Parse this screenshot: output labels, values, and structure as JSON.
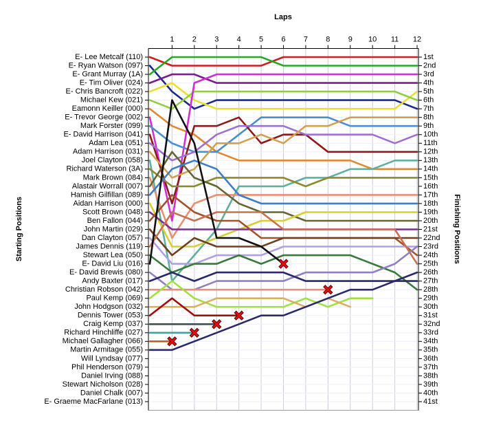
{
  "chart_data": {
    "type": "line",
    "title": "Laps",
    "ylabel": "Starting Positions",
    "y2label": "Finishing Positions",
    "x": [
      0,
      1,
      2,
      3,
      4,
      5,
      6,
      7,
      8,
      9,
      10,
      11,
      12
    ],
    "xlim": [
      0,
      12
    ],
    "xticks": [
      1,
      2,
      3,
      4,
      5,
      6,
      7,
      8,
      9,
      10,
      11,
      12
    ],
    "ylim": [
      42,
      0
    ],
    "yticks": [
      {
        "value": 1,
        "label": "E- Lee Metcalf (110)"
      },
      {
        "value": 2,
        "label": "E- Ryan Watson (097)"
      },
      {
        "value": 3,
        "label": "E- Grant Murray (1A)"
      },
      {
        "value": 4,
        "label": "E- Tim Oliver (024)"
      },
      {
        "value": 5,
        "label": "E- Chris Bancroft (022)"
      },
      {
        "value": 6,
        "label": "Michael Kew (021)"
      },
      {
        "value": 7,
        "label": "Eamonn Keiller (000)"
      },
      {
        "value": 8,
        "label": "E- Trevor George (002)"
      },
      {
        "value": 9,
        "label": "Mark Forster (099)"
      },
      {
        "value": 10,
        "label": "E- David Harrison (041)"
      },
      {
        "value": 11,
        "label": "Adam Lea (051)"
      },
      {
        "value": 12,
        "label": "Adam Harrison (031)"
      },
      {
        "value": 13,
        "label": "Joel Clayton (058)"
      },
      {
        "value": 14,
        "label": "Richard Waterson (3A)"
      },
      {
        "value": 15,
        "label": "Mark Brown (084)"
      },
      {
        "value": 16,
        "label": "Alastair Worrall (007)"
      },
      {
        "value": 17,
        "label": "Hamish Gilfillan (089)"
      },
      {
        "value": 18,
        "label": "Aidan Harrison (000)"
      },
      {
        "value": 19,
        "label": "Scott Brown (048)"
      },
      {
        "value": 20,
        "label": "Ben Fallon (044)"
      },
      {
        "value": 21,
        "label": "John Martin (029)"
      },
      {
        "value": 22,
        "label": "Dan Clayton (057)"
      },
      {
        "value": 23,
        "label": "James Dennis (119)"
      },
      {
        "value": 24,
        "label": "Stewart Lea (050)"
      },
      {
        "value": 25,
        "label": "E- David Liu (016)"
      },
      {
        "value": 26,
        "label": "E- David Brewis (080)"
      },
      {
        "value": 27,
        "label": "Andy Baxter (017)"
      },
      {
        "value": 28,
        "label": "Christian Robson (042)"
      },
      {
        "value": 29,
        "label": "Paul Kemp (069)"
      },
      {
        "value": 30,
        "label": "John Hodgson (032)"
      },
      {
        "value": 31,
        "label": "Dennis Tower (053)"
      },
      {
        "value": 32,
        "label": "Craig Kemp (037)"
      },
      {
        "value": 33,
        "label": "Richard Hinchliffe (027)"
      },
      {
        "value": 34,
        "label": "Michael Gallagher (066)"
      },
      {
        "value": 35,
        "label": "Martin Armitage (055)"
      },
      {
        "value": 36,
        "label": "Will Lyndsay (077)"
      },
      {
        "value": 37,
        "label": "Phil Henderson (079)"
      },
      {
        "value": 38,
        "label": "Daniel Irving (088)"
      },
      {
        "value": 39,
        "label": "Stewart Nicholson (028)"
      },
      {
        "value": 40,
        "label": "Daniel Chalk (007)"
      },
      {
        "value": 41,
        "label": "E- Graeme MacFarlane (013)"
      }
    ],
    "y2lim": [
      42,
      0
    ],
    "y2ticks": [
      {
        "value": 1,
        "label": "1st"
      },
      {
        "value": 2,
        "label": "2nd"
      },
      {
        "value": 3,
        "label": "3rd"
      },
      {
        "value": 4,
        "label": "4th"
      },
      {
        "value": 5,
        "label": "5th"
      },
      {
        "value": 6,
        "label": "6th"
      },
      {
        "value": 7,
        "label": "7th"
      },
      {
        "value": 8,
        "label": "8th"
      },
      {
        "value": 9,
        "label": "9th"
      },
      {
        "value": 10,
        "label": "10th"
      },
      {
        "value": 11,
        "label": "11th"
      },
      {
        "value": 12,
        "label": "12th"
      },
      {
        "value": 13,
        "label": "13th"
      },
      {
        "value": 14,
        "label": "14th"
      },
      {
        "value": 15,
        "label": "15th"
      },
      {
        "value": 16,
        "label": "16th"
      },
      {
        "value": 17,
        "label": "17th"
      },
      {
        "value": 18,
        "label": "18th"
      },
      {
        "value": 19,
        "label": "19th"
      },
      {
        "value": 20,
        "label": "20th"
      },
      {
        "value": 21,
        "label": "21st"
      },
      {
        "value": 22,
        "label": "22nd"
      },
      {
        "value": 23,
        "label": "23rd"
      },
      {
        "value": 24,
        "label": "24th"
      },
      {
        "value": 25,
        "label": "25th"
      },
      {
        "value": 26,
        "label": "26th"
      },
      {
        "value": 27,
        "label": "27th"
      },
      {
        "value": 28,
        "label": "28th"
      },
      {
        "value": 29,
        "label": "29th"
      },
      {
        "value": 30,
        "label": "30th"
      },
      {
        "value": 31,
        "label": "31st"
      },
      {
        "value": 32,
        "label": "32nd"
      },
      {
        "value": 33,
        "label": "33rd"
      },
      {
        "value": 34,
        "label": "34th"
      },
      {
        "value": 35,
        "label": "35th"
      },
      {
        "value": 36,
        "label": "36th"
      },
      {
        "value": 37,
        "label": "37th"
      },
      {
        "value": 38,
        "label": "38th"
      },
      {
        "value": 39,
        "label": "39th"
      },
      {
        "value": 40,
        "label": "40th"
      },
      {
        "value": 41,
        "label": "41st"
      }
    ],
    "grid": true,
    "series": [
      {
        "color": "#cc1f1f",
        "values": [
          1,
          2,
          2,
          2,
          2,
          2,
          1,
          1,
          1,
          1,
          1,
          1,
          1
        ]
      },
      {
        "color": "#1a2a8a",
        "values": [
          2,
          5,
          7,
          6,
          6,
          6,
          6,
          6,
          6,
          6,
          6,
          6,
          7
        ]
      },
      {
        "color": "#22aa22",
        "values": [
          3,
          1,
          1,
          1,
          1,
          1,
          2,
          2,
          2,
          2,
          2,
          2,
          2
        ]
      },
      {
        "color": "#7a1f8a",
        "values": [
          4,
          3,
          3,
          4,
          4,
          4,
          4,
          4,
          4,
          4,
          4,
          4,
          4
        ]
      },
      {
        "color": "#e8e030",
        "values": [
          5,
          4,
          6,
          7,
          7,
          7,
          7,
          7,
          7,
          7,
          7,
          7,
          5
        ]
      },
      {
        "color": "#90d040",
        "values": [
          6,
          7,
          5,
          5,
          5,
          5,
          5,
          5,
          5,
          5,
          5,
          5,
          6
        ]
      },
      {
        "color": "#e08a30",
        "values": [
          7,
          9,
          10,
          12,
          13,
          13,
          13,
          13,
          13,
          13,
          14,
          14,
          14
        ]
      },
      {
        "color": "#d030d0",
        "values": [
          8,
          20,
          4,
          3,
          3,
          3,
          3,
          3,
          3,
          3,
          3,
          3,
          3
        ]
      },
      {
        "color": "#4a8fd0",
        "values": [
          9,
          11,
          12,
          12,
          10,
          8,
          8,
          8,
          8,
          9,
          9,
          9,
          9
        ]
      },
      {
        "color": "#8b1a1a",
        "values": [
          10,
          18,
          9,
          9,
          8,
          11,
          10,
          10,
          12,
          12,
          12,
          12,
          12
        ]
      },
      {
        "color": "#a070d0",
        "values": [
          11,
          13,
          12,
          10,
          9,
          9,
          9,
          10,
          10,
          10,
          10,
          11,
          10
        ]
      },
      {
        "color": "#d4a050",
        "values": [
          12,
          15,
          14,
          11,
          11,
          10,
          11,
          9,
          9,
          8,
          8,
          8,
          8
        ]
      },
      {
        "color": "#60b0a0",
        "values": [
          13,
          27,
          24,
          21,
          16,
          16,
          16,
          15,
          15,
          14,
          14,
          13,
          13
        ]
      },
      {
        "color": "#8b8b30",
        "values": [
          14,
          16,
          16,
          15,
          15,
          15,
          15,
          16,
          15,
          15,
          15,
          15,
          15
        ]
      },
      {
        "color": "#e89070",
        "values": [
          15,
          22,
          18,
          17,
          17,
          17,
          17,
          17,
          17,
          17,
          17,
          17,
          17
        ]
      },
      {
        "color": "#666633",
        "values": [
          16,
          12,
          15,
          16,
          18,
          19,
          19,
          20,
          20,
          20,
          20,
          20,
          20
        ]
      },
      {
        "color": "#3c7fc8",
        "values": [
          17,
          14,
          13,
          14,
          17,
          18,
          18,
          18,
          18,
          18,
          18,
          18,
          18
        ]
      },
      {
        "color": "#d8d030",
        "values": [
          18,
          23,
          23,
          22,
          21,
          20,
          20,
          19,
          19,
          19,
          19,
          19,
          19
        ]
      },
      {
        "color": "#7b2d8e",
        "values": [
          19,
          21,
          21,
          21,
          21,
          21,
          21,
          21,
          21,
          21,
          21,
          21,
          21
        ]
      },
      {
        "color": "#a0522d",
        "values": [
          20,
          17,
          19,
          20,
          20,
          22,
          22,
          22,
          22,
          22,
          22,
          22,
          24
        ]
      },
      {
        "color": "#704020",
        "values": [
          21,
          24,
          22,
          23,
          23,
          23,
          22,
          22,
          22,
          22,
          22,
          22,
          22
        ]
      },
      {
        "color": "#b0a0e0",
        "values": [
          22,
          25,
          25,
          24,
          24,
          24,
          23,
          23,
          23,
          23,
          23,
          23,
          23
        ]
      },
      {
        "color": "#c87050",
        "values": [
          23,
          19,
          20,
          19,
          19,
          19,
          21,
          21,
          21,
          21,
          21,
          21,
          25
        ]
      },
      {
        "color": "#3a7a3a",
        "values": [
          24,
          26,
          25,
          25,
          24,
          25,
          24,
          24,
          24,
          24,
          25,
          26,
          28
        ]
      },
      {
        "color": "#111111",
        "values": [
          25,
          6,
          11,
          22,
          22,
          23,
          25,
          null,
          null,
          null,
          null,
          null,
          null
        ]
      },
      {
        "color": "#9080c0",
        "values": [
          26,
          28,
          28,
          27,
          27,
          27,
          27,
          26,
          26,
          26,
          26,
          25,
          23
        ]
      },
      {
        "color": "#2a2a6a",
        "values": [
          27,
          26,
          27,
          26,
          26,
          26,
          26,
          27,
          27,
          27,
          27,
          27,
          26
        ]
      },
      {
        "color": "#e09080",
        "values": [
          28,
          28,
          28,
          28,
          28,
          28,
          28,
          28,
          28,
          null,
          null,
          null,
          null
        ]
      },
      {
        "color": "#a0e040",
        "values": [
          29,
          27,
          29,
          30,
          30,
          30,
          30,
          29,
          30,
          29,
          29,
          null,
          null
        ]
      },
      {
        "color": "#d8b060",
        "values": [
          30,
          30,
          30,
          29,
          29,
          29,
          29,
          30,
          29,
          30,
          null,
          null,
          null
        ]
      },
      {
        "color": "#a01010",
        "values": [
          31,
          29,
          31,
          31,
          31,
          null,
          null,
          null,
          null,
          null,
          null,
          null,
          null
        ]
      },
      {
        "color": "#405050",
        "values": [
          32,
          32,
          32,
          32,
          null,
          null,
          null,
          null,
          null,
          null,
          null,
          null,
          null
        ]
      },
      {
        "color": "#40a0a0",
        "values": [
          33,
          33,
          33,
          null,
          null,
          null,
          null,
          null,
          null,
          null,
          null,
          null,
          null
        ]
      },
      {
        "color": "#c06020",
        "values": [
          34,
          34,
          null,
          null,
          null,
          null,
          null,
          null,
          null,
          null,
          null,
          null,
          null
        ]
      },
      {
        "color": "#2a2a6a",
        "values": [
          35,
          35,
          34,
          33,
          32,
          31,
          31,
          30,
          29,
          28,
          28,
          27,
          27
        ]
      }
    ],
    "retirements": [
      {
        "lap": 6,
        "position": 25
      },
      {
        "lap": 8,
        "position": 28
      },
      {
        "lap": 4,
        "position": 31
      },
      {
        "lap": 3,
        "position": 32
      },
      {
        "lap": 2,
        "position": 33
      },
      {
        "lap": 1,
        "position": 34
      }
    ]
  }
}
